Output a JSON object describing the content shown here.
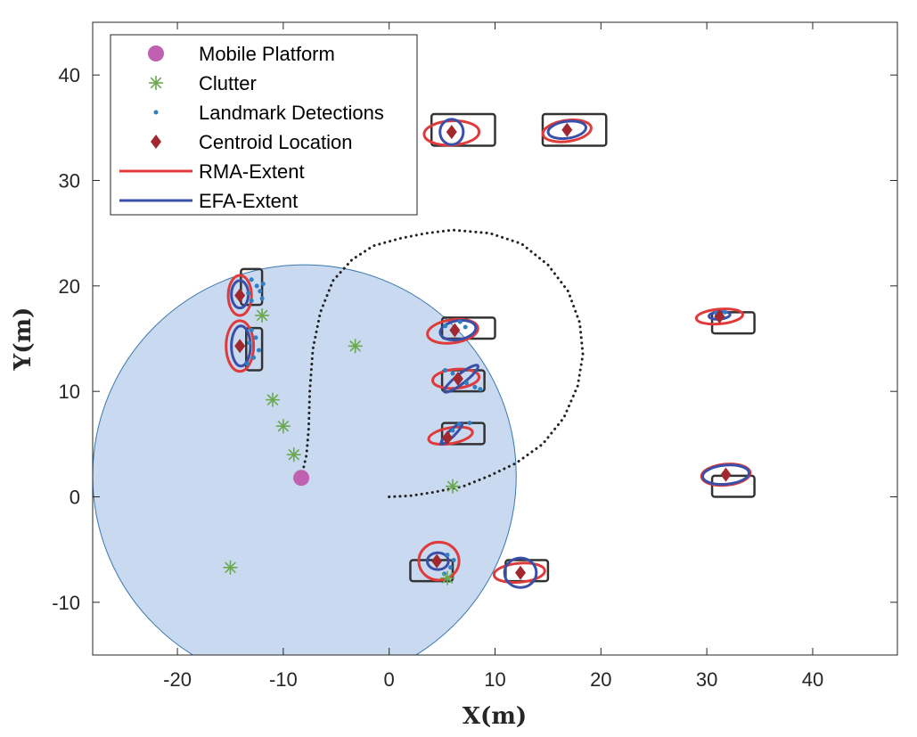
{
  "chart_data": {
    "type": "scatter",
    "title": "",
    "xlabel": "X(m)",
    "ylabel": "Y(m)",
    "xlim": [
      -28,
      48
    ],
    "ylim": [
      -15,
      45
    ],
    "xticks": [
      -20,
      -10,
      0,
      10,
      20,
      30,
      40
    ],
    "yticks": [
      -10,
      0,
      10,
      20,
      30,
      40
    ],
    "grid": false,
    "legend_position": "top-left",
    "colors": {
      "platform": "#c060b0",
      "clutter": "#6aa84f",
      "detections": "#2f7fc1",
      "centroid": "#a0282e",
      "rma": "#e03a3a",
      "efa": "#3a50a8",
      "truth": "#333333",
      "sensor_fill": "#c9d9ef",
      "sensor_edge": "#3a78b0",
      "trajectory": "#222222"
    },
    "legend": [
      {
        "key": "platform",
        "label": "Mobile Platform"
      },
      {
        "key": "clutter",
        "label": "Clutter"
      },
      {
        "key": "detections",
        "label": "Landmark Detections"
      },
      {
        "key": "centroid",
        "label": "Centroid Location"
      },
      {
        "key": "rma",
        "label": "RMA-Extent"
      },
      {
        "key": "efa",
        "label": "EFA-Extent"
      }
    ],
    "platform": {
      "x": -8.3,
      "y": 1.8
    },
    "sensor_range": {
      "cx": -8,
      "cy": 2,
      "r": 20
    },
    "trajectory": [
      [
        0,
        0
      ],
      [
        2,
        0.1
      ],
      [
        4,
        0.4
      ],
      [
        7,
        1
      ],
      [
        9.5,
        2
      ],
      [
        12,
        3.2
      ],
      [
        14.5,
        5
      ],
      [
        16.5,
        7.5
      ],
      [
        17.8,
        10.5
      ],
      [
        18.3,
        13.5
      ],
      [
        18,
        16.5
      ],
      [
        16.9,
        19.5
      ],
      [
        15,
        22
      ],
      [
        12.5,
        24
      ],
      [
        9.5,
        25
      ],
      [
        6,
        25.3
      ],
      [
        3.5,
        25
      ],
      [
        1,
        24.5
      ],
      [
        -1.5,
        23.8
      ],
      [
        -3.5,
        22.5
      ],
      [
        -5.3,
        20.5
      ],
      [
        -6.5,
        17.5
      ],
      [
        -7.2,
        14
      ],
      [
        -7.5,
        10
      ],
      [
        -7.6,
        6.5
      ],
      [
        -7.8,
        4
      ],
      [
        -8.3,
        1.8
      ]
    ],
    "clutter": [
      [
        -12,
        17.2
      ],
      [
        -3.2,
        14.3
      ],
      [
        -11,
        9.2
      ],
      [
        -10,
        6.7
      ],
      [
        -9,
        4
      ],
      [
        6,
        1
      ],
      [
        -15,
        -6.7
      ],
      [
        5.5,
        -7.7
      ]
    ],
    "landmarks": [
      {
        "truth_box": [
          4,
          33.3,
          10,
          36.3
        ],
        "centroid": [
          5.9,
          34.6
        ],
        "rma": {
          "cx": 5.9,
          "cy": 34.5,
          "rx": 2.6,
          "ry": 1.15,
          "rot": -3
        },
        "efa": {
          "cx": 5.9,
          "cy": 34.6,
          "rx": 1.1,
          "ry": 1.2,
          "rot": 0
        },
        "detections": []
      },
      {
        "truth_box": [
          14.5,
          33.3,
          20.5,
          36.3
        ],
        "centroid": [
          16.8,
          34.8
        ],
        "rma": {
          "cx": 16.8,
          "cy": 34.7,
          "rx": 2.3,
          "ry": 1.0,
          "rot": -8
        },
        "efa": {
          "cx": 16.8,
          "cy": 34.8,
          "rx": 1.8,
          "ry": 0.8,
          "rot": -8
        },
        "detections": []
      },
      {
        "truth_box": [
          -14,
          18.2,
          -12,
          21.6
        ],
        "centroid": [
          -14.1,
          19.1
        ],
        "rma": {
          "cx": -14.1,
          "cy": 19.1,
          "rx": 1.1,
          "ry": 1.9,
          "rot": 0
        },
        "efa": {
          "cx": -14.1,
          "cy": 19.2,
          "rx": 0.8,
          "ry": 1.3,
          "rot": 0
        },
        "detections": [
          [
            -13,
            20.6
          ],
          [
            -12.5,
            20
          ],
          [
            -11.9,
            20.2
          ],
          [
            -12.2,
            19.5
          ],
          [
            -13.3,
            19.3
          ],
          [
            -12,
            18.8
          ],
          [
            -13,
            18.6
          ]
        ]
      },
      {
        "truth_box": [
          -13.5,
          12,
          -12,
          16
        ],
        "centroid": [
          -14.1,
          14.3
        ],
        "rma": {
          "cx": -14.1,
          "cy": 14.3,
          "rx": 1.3,
          "ry": 2.4,
          "rot": 0
        },
        "efa": {
          "cx": -14,
          "cy": 14.3,
          "rx": 0.9,
          "ry": 1.9,
          "rot": 0
        },
        "detections": [
          [
            -13,
            15.8
          ],
          [
            -12.6,
            15.1
          ],
          [
            -13.2,
            14.6
          ],
          [
            -12.3,
            13.9
          ],
          [
            -12.8,
            13.2
          ],
          [
            -13.4,
            12.6
          ]
        ]
      },
      {
        "truth_box": [
          5,
          15,
          10,
          17
        ],
        "centroid": [
          6.2,
          15.8
        ],
        "rma": {
          "cx": 6,
          "cy": 15.7,
          "rx": 2.4,
          "ry": 1.1,
          "rot": -8
        },
        "efa": {
          "cx": 6.5,
          "cy": 15.8,
          "rx": 1.7,
          "ry": 0.9,
          "rot": -10
        },
        "detections": [
          [
            5.3,
            16.2
          ],
          [
            6.7,
            16.6
          ],
          [
            7.2,
            16.1
          ]
        ]
      },
      {
        "truth_box": [
          5,
          10,
          9,
          12
        ],
        "centroid": [
          6.5,
          11.2
        ],
        "rma": {
          "cx": 6.3,
          "cy": 11.2,
          "rx": 2.2,
          "ry": 0.9,
          "rot": -5
        },
        "efa": {
          "cx": 6.8,
          "cy": 11.2,
          "rx": 2.0,
          "ry": 0.45,
          "rot": -38
        },
        "detections": [
          [
            5.3,
            12
          ],
          [
            6,
            11.7
          ],
          [
            7.3,
            10.8
          ],
          [
            8.1,
            10.4
          ],
          [
            8.6,
            10.2
          ]
        ]
      },
      {
        "truth_box": [
          5,
          5,
          9,
          7
        ],
        "centroid": [
          5.5,
          5.6
        ],
        "rma": {
          "cx": 5.8,
          "cy": 5.8,
          "rx": 2.1,
          "ry": 0.75,
          "rot": -10
        },
        "efa": {
          "cx": 5.9,
          "cy": 6,
          "rx": 1.4,
          "ry": 0.3,
          "rot": -45
        },
        "detections": [
          [
            5.3,
            5.5
          ],
          [
            6,
            6.3
          ],
          [
            6.6,
            6.9
          ],
          [
            7.6,
            7
          ]
        ]
      },
      {
        "truth_box": [
          30.5,
          15.5,
          34.5,
          17.5
        ],
        "centroid": [
          31.2,
          17.1
        ],
        "rma": {
          "cx": 31.2,
          "cy": 17.1,
          "rx": 2.2,
          "ry": 0.7,
          "rot": -5
        },
        "efa": {
          "cx": 31.2,
          "cy": 17.2,
          "rx": 1.0,
          "ry": 0.35,
          "rot": -5
        },
        "detections": [
          [
            30.9,
            17.4
          ],
          [
            31.7,
            17.5
          ]
        ]
      },
      {
        "truth_box": [
          30.5,
          0,
          34.5,
          2
        ],
        "centroid": [
          31.8,
          2.1
        ],
        "rma": {
          "cx": 31.8,
          "cy": 2.1,
          "rx": 2.3,
          "ry": 1.0,
          "rot": -5
        },
        "efa": {
          "cx": 31.8,
          "cy": 2.1,
          "rx": 2.2,
          "ry": 0.9,
          "rot": -5
        },
        "detections": []
      },
      {
        "truth_box": [
          2,
          -8,
          6,
          -6
        ],
        "centroid": [
          4.5,
          -6.1
        ],
        "rma": {
          "cx": 4.7,
          "cy": -6.1,
          "rx": 1.9,
          "ry": 1.8,
          "rot": 0
        },
        "efa": {
          "cx": 4.6,
          "cy": -6.1,
          "rx": 1.0,
          "ry": 0.8,
          "rot": 0
        },
        "detections": [
          [
            5.5,
            -5.5
          ],
          [
            6.1,
            -6
          ],
          [
            5.8,
            -6.7
          ],
          [
            5.2,
            -7.3
          ]
        ]
      },
      {
        "truth_box": [
          11,
          -8,
          15,
          -6
        ],
        "centroid": [
          12.4,
          -7.2
        ],
        "rma": {
          "cx": 12.3,
          "cy": -7.2,
          "rx": 2.4,
          "ry": 0.9,
          "rot": -5
        },
        "efa": {
          "cx": 12.4,
          "cy": -7.2,
          "rx": 1.5,
          "ry": 1.4,
          "rot": 0
        },
        "detections": []
      }
    ]
  }
}
